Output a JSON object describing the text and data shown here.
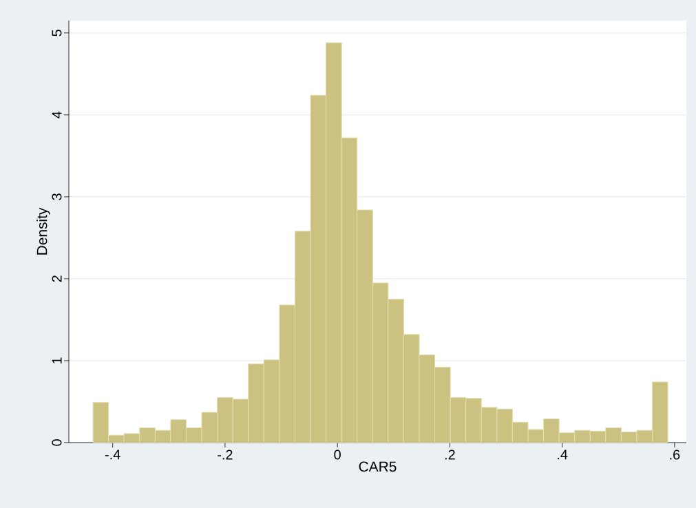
{
  "chart_data": {
    "type": "histogram",
    "xlabel": "CAR5",
    "ylabel": "Density",
    "color": "#cbc282",
    "bins": [
      -0.435,
      -0.4074,
      -0.3797,
      -0.3521,
      -0.3244,
      -0.2968,
      -0.2691,
      -0.2415,
      -0.2138,
      -0.1862,
      -0.1585,
      -0.1309,
      -0.1032,
      -0.0756,
      -0.0479,
      -0.0203,
      0.0074,
      0.035,
      0.0627,
      0.0903,
      0.118,
      0.1456,
      0.1733,
      0.2009,
      0.2286,
      0.2562,
      0.2839,
      0.3115,
      0.3392,
      0.3668,
      0.3945,
      0.4221,
      0.4498,
      0.4774,
      0.5051,
      0.5327,
      0.5604,
      0.588
    ],
    "values": [
      0.49,
      0.09,
      0.11,
      0.18,
      0.15,
      0.28,
      0.18,
      0.37,
      0.55,
      0.53,
      0.96,
      1.01,
      1.68,
      2.58,
      4.24,
      4.88,
      3.72,
      2.84,
      1.95,
      1.75,
      1.32,
      1.07,
      0.92,
      0.55,
      0.54,
      0.43,
      0.41,
      0.25,
      0.16,
      0.29,
      0.12,
      0.15,
      0.14,
      0.18,
      0.13,
      0.15,
      0.74
    ],
    "xlim": [
      -0.478,
      0.621
    ],
    "ylim": [
      0,
      5.15
    ],
    "xticks": [
      {
        "value": -0.4,
        "label": "-.4"
      },
      {
        "value": -0.2,
        "label": "-.2"
      },
      0,
      {
        "value": 0.2,
        "label": ".2"
      },
      {
        "value": 0.4,
        "label": ".4"
      },
      {
        "value": 0.6,
        "label": ".6"
      }
    ],
    "yticks": [
      0,
      1,
      2,
      3,
      4,
      5
    ],
    "grid": "y"
  }
}
